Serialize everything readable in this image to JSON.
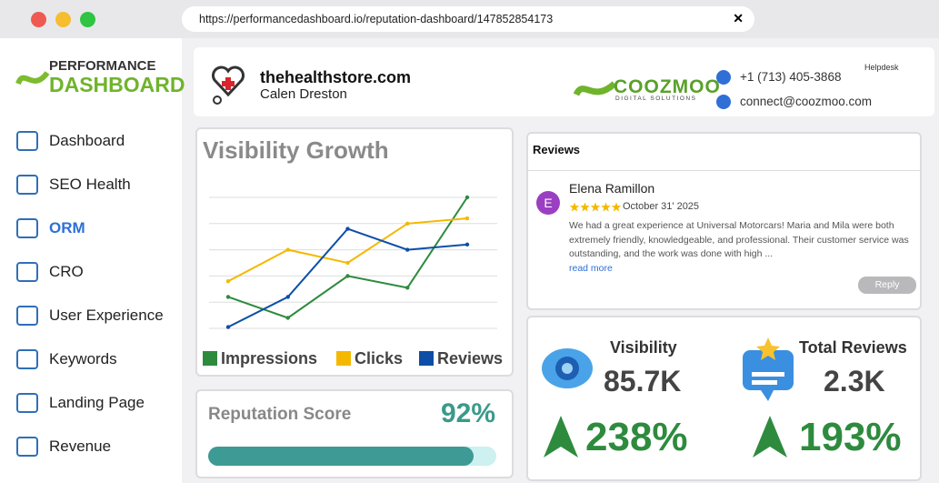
{
  "browser": {
    "url": "https://performancedashboard.io/reputation-dashboard/147852854173"
  },
  "sidebar": {
    "logo_top": "PERFORMANCE",
    "logo_bottom": "DASHBOARD",
    "nav": [
      "Dashboard",
      "SEO Health",
      "ORM",
      "CRO",
      "User Experience",
      "Keywords",
      "Landing Page",
      "Revenue"
    ],
    "active": 2
  },
  "header": {
    "site": "thehealthstore.com",
    "user": "Calen Dreston",
    "brand": "COOZMOO",
    "brand_tagline": "DIGITAL SOLUTIONS",
    "phone": "+1 (713) 405-3868",
    "email": "connect@coozmoo.com",
    "helpdesk": "Helpdesk"
  },
  "chart_data": {
    "type": "line",
    "title": "Visibility Growth",
    "categories": [
      null,
      null,
      null,
      null,
      null
    ],
    "series": [
      {
        "name": "Impressions",
        "color": "#2e8b3e",
        "values": [
          24,
          8,
          40,
          31,
          100
        ]
      },
      {
        "name": "Clicks",
        "color": "#f5b800",
        "values": [
          36,
          60,
          50,
          80,
          84
        ]
      },
      {
        "name": "Reviews",
        "color": "#0d4fa6",
        "values": [
          1,
          24,
          76,
          60,
          64
        ]
      }
    ],
    "ylim": [
      0,
      100
    ],
    "yticks": [
      0,
      20,
      40,
      60,
      80,
      100
    ],
    "grid": true
  },
  "reviews": {
    "title": "Reviews",
    "reviewer": "Elena Ramillon",
    "initial": "E",
    "rating": 5,
    "date": "October 31' 2025",
    "text": "We had a great experience at Universal Motorcars! Maria and Mila were both extremely friendly, knowledgeable, and professional. Their customer service was outstanding, and the work was done with high ...",
    "read_more": "read more",
    "reply": "Reply"
  },
  "reputation": {
    "title": "Reputation Score",
    "score": {
      "value": 92,
      "label": "92%"
    }
  },
  "stats": [
    {
      "title": "Visibility",
      "value": "85.7K",
      "change": "238%"
    },
    {
      "title": "Total Reviews",
      "value": "2.3K",
      "change": "193%"
    }
  ]
}
